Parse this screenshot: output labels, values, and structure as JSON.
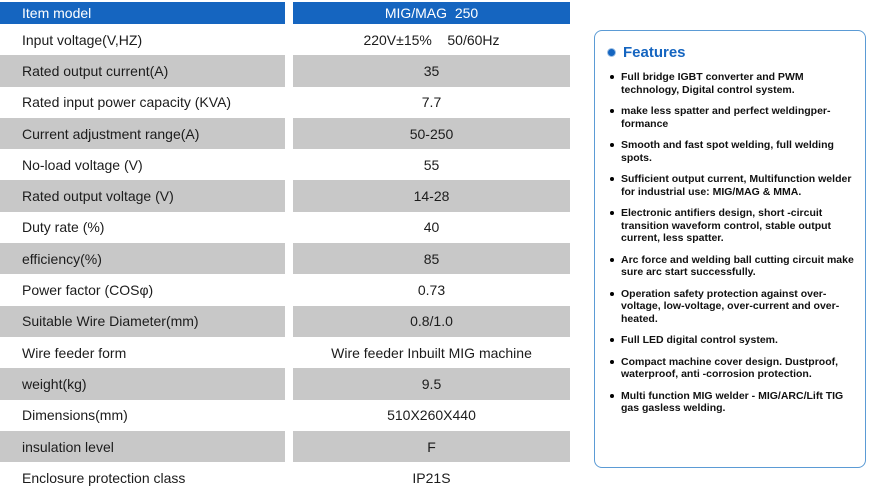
{
  "colors": {
    "header_blue": "#1565c0",
    "row_gray": "#c8c8c8",
    "features_blue": "#1565c0",
    "border_blue": "#5b9bd5"
  },
  "table": {
    "header_left": "Item model",
    "header_right": "MIG/MAG  250",
    "rows": [
      {
        "label": "Input voltage(V,HZ)",
        "value": "220V±15%    50/60Hz"
      },
      {
        "label": "Rated output current(A)",
        "value": "35"
      },
      {
        "label": "Rated input power capacity (KVA)",
        "value": "7.7"
      },
      {
        "label": "Current adjustment range(A)",
        "value": "50-250"
      },
      {
        "label": "No-load voltage (V)",
        "value": "55"
      },
      {
        "label": "Rated output voltage (V)",
        "value": "14-28"
      },
      {
        "label": "Duty rate (%)",
        "value": "40"
      },
      {
        "label": "efficiency(%)",
        "value": "85"
      },
      {
        "label": "Power factor (COSφ)",
        "value": "0.73"
      },
      {
        "label": "Suitable Wire Diameter(mm)",
        "value": "0.8/1.0"
      },
      {
        "label": "Wire feeder form",
        "value": "Wire feeder Inbuilt MIG machine"
      },
      {
        "label": "weight(kg)",
        "value": "9.5"
      },
      {
        "label": "Dimensions(mm)",
        "value": "510X260X440"
      },
      {
        "label": "insulation level",
        "value": "F"
      },
      {
        "label": "Enclosure protection class",
        "value": "IP21S"
      }
    ]
  },
  "features": {
    "title": "Features",
    "items": [
      "Full bridge IGBT converter and PWM technology, Digital control system.",
      "make less spatter and perfect weldingper-formance",
      "Smooth and fast spot welding, full welding spots.",
      "Sufficient output current, Multifunction welder for industrial use: MIG/MAG & MMA.",
      "Electronic antifiers design, short -circuit transition waveform control, stable output current, less spatter.",
      "Arc force and welding ball cutting circuit make sure arc start successfully.",
      "Operation safety protection against over-voltage, low-voltage, over-current and over-heated.",
      "Full LED digital control system.",
      "Compact machine cover design. Dustproof, waterproof, anti -corrosion protection.",
      "Multi function MIG welder - MIG/ARC/Lift TIG gas gasless welding."
    ]
  }
}
